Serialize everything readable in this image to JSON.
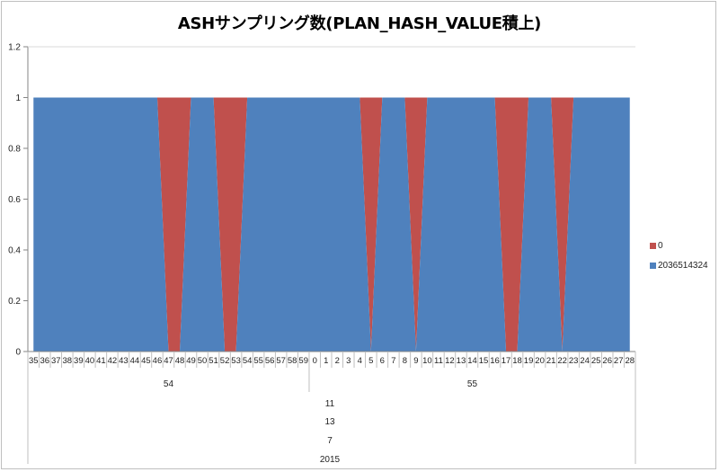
{
  "chart_data": {
    "type": "area",
    "stacked": true,
    "title": "ASHサンプリング数(PLAN_HASH_VALUE積上)",
    "xlabel": "",
    "ylabel": "",
    "ylim": [
      0,
      1.2
    ],
    "yticks": [
      0,
      0.2,
      0.4,
      0.6,
      0.8,
      1,
      1.2
    ],
    "ytick_labels": [
      "0",
      "0.2",
      "0.4",
      "0.6",
      "0.8",
      "1",
      "1.2"
    ],
    "grid": false,
    "legend_position": "right",
    "x_hierarchy": {
      "year": "2015",
      "month": "7",
      "day": "13",
      "hour": "11",
      "minutes": [
        {
          "label": "54",
          "seconds": [
            "35",
            "36",
            "37",
            "38",
            "39",
            "40",
            "41",
            "42",
            "43",
            "44",
            "45",
            "46",
            "47",
            "48",
            "49",
            "50",
            "51",
            "52",
            "53",
            "54",
            "55",
            "56",
            "57",
            "58",
            "59"
          ]
        },
        {
          "label": "55",
          "seconds": [
            "0",
            "1",
            "2",
            "3",
            "4",
            "5",
            "6",
            "7",
            "8",
            "9",
            "10",
            "11",
            "12",
            "13",
            "14",
            "15",
            "16",
            "17",
            "18",
            "19",
            "20",
            "21",
            "22",
            "23",
            "24",
            "25",
            "26",
            "27",
            "28"
          ]
        }
      ]
    },
    "categories": [
      "11:54:35",
      "11:54:36",
      "11:54:37",
      "11:54:38",
      "11:54:39",
      "11:54:40",
      "11:54:41",
      "11:54:42",
      "11:54:43",
      "11:54:44",
      "11:54:45",
      "11:54:46",
      "11:54:47",
      "11:54:48",
      "11:54:49",
      "11:54:50",
      "11:54:51",
      "11:54:52",
      "11:54:53",
      "11:54:54",
      "11:54:55",
      "11:54:56",
      "11:54:57",
      "11:54:58",
      "11:54:59",
      "11:55:00",
      "11:55:01",
      "11:55:02",
      "11:55:03",
      "11:55:04",
      "11:55:05",
      "11:55:06",
      "11:55:07",
      "11:55:08",
      "11:55:09",
      "11:55:10",
      "11:55:11",
      "11:55:12",
      "11:55:13",
      "11:55:14",
      "11:55:15",
      "11:55:16",
      "11:55:17",
      "11:55:18",
      "11:55:19",
      "11:55:20",
      "11:55:21",
      "11:55:22",
      "11:55:23",
      "11:55:24",
      "11:55:25",
      "11:55:26",
      "11:55:27",
      "11:55:28"
    ],
    "series": [
      {
        "name": "2036514324",
        "color": "#4f81bd",
        "values": [
          1,
          1,
          1,
          1,
          1,
          1,
          1,
          1,
          1,
          1,
          1,
          1,
          0,
          0,
          1,
          1,
          1,
          0,
          0,
          1,
          1,
          1,
          1,
          1,
          1,
          1,
          1,
          1,
          1,
          1,
          0,
          1,
          1,
          1,
          0,
          1,
          1,
          1,
          1,
          1,
          1,
          1,
          0,
          0,
          1,
          1,
          1,
          0,
          1,
          1,
          1,
          1,
          1,
          1
        ]
      },
      {
        "name": "0",
        "color": "#c0504d",
        "values": [
          0,
          0,
          0,
          0,
          0,
          0,
          0,
          0,
          0,
          0,
          0,
          0,
          1,
          1,
          0,
          0,
          0,
          1,
          1,
          0,
          0,
          0,
          0,
          0,
          0,
          0,
          0,
          0,
          0,
          0,
          1,
          0,
          0,
          0,
          1,
          0,
          0,
          0,
          0,
          0,
          0,
          0,
          1,
          1,
          0,
          0,
          0,
          1,
          0,
          0,
          0,
          0,
          0,
          0
        ]
      }
    ]
  },
  "legend": {
    "items": [
      {
        "label": "0",
        "color": "#c0504d"
      },
      {
        "label": "2036514324",
        "color": "#4f81bd"
      }
    ]
  }
}
